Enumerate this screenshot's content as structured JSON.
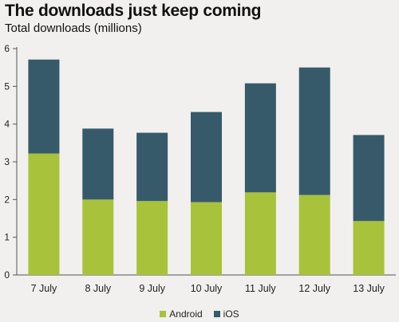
{
  "chart_data": {
    "type": "bar",
    "stacked": true,
    "title": "The downloads just keep coming",
    "subtitle": "Total downloads (millions)",
    "xlabel": "",
    "ylabel": "",
    "categories": [
      "7 July",
      "8 July",
      "9 July",
      "10 July",
      "11 July",
      "12 July",
      "13 July"
    ],
    "series": [
      {
        "name": "Android",
        "color": "#a8c23b",
        "values": [
          3.22,
          2.0,
          1.96,
          1.93,
          2.19,
          2.12,
          1.43
        ]
      },
      {
        "name": "iOS",
        "color": "#375a6b",
        "values": [
          2.49,
          1.88,
          1.81,
          2.39,
          2.89,
          3.38,
          2.28
        ]
      }
    ],
    "ylim": [
      0,
      6
    ],
    "yticks": [
      0,
      1,
      2,
      3,
      4,
      5,
      6
    ],
    "grid": false,
    "legend_position": "bottom-center"
  }
}
